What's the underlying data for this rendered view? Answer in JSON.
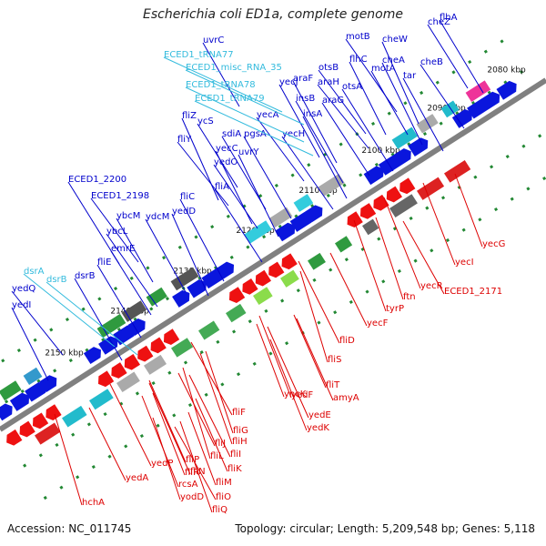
{
  "title": "Escherichia coli ED1a, complete genome",
  "footer": {
    "accession": "Accession: NC_011745",
    "summary": "Topology: circular; Length: 5,209,548 bp; Genes: 5,118"
  },
  "colors": {
    "backbone": "#808080",
    "forward_label": "#0000cc",
    "rna_label": "#33bbdd",
    "reverse_label": "#dd0000",
    "tick": "#228833"
  },
  "scale_ticks": [
    "2080 kbp",
    "2090 kbp",
    "2100 kbp",
    "2110 kbp",
    "2120 kbp",
    "2130 kbp",
    "2140 kbp",
    "2150 kbp"
  ],
  "forward_genes": [
    "uvrC",
    "yecJ",
    "araF",
    "otsB",
    "motB",
    "cheW",
    "cheZ",
    "flhA",
    "insB",
    "araH",
    "flhC",
    "cheA",
    "cheB",
    "araG",
    "otsA",
    "motA",
    "tar",
    "insA",
    "yecA",
    "yecH",
    "fliZ",
    "ycS",
    "sdiA",
    "pgsA",
    "fliY",
    "yecC",
    "uvrY",
    "yedO",
    "fliA",
    "ECED1_2200",
    "ybcM",
    "ydcM",
    "fliC",
    "ECED1_2198",
    "ybcL",
    "yedD",
    "emrE",
    "fliE",
    "dsrB",
    "yedQ",
    "yedI"
  ],
  "rna_genes": [
    "ECED1_tRNA77",
    "ECED1_misc_RNA_35",
    "ECED1_tRNA78",
    "ECED1_tRNA79",
    "dsrA",
    "dsrB"
  ],
  "reverse_genes": [
    "yecG",
    "yecI",
    "yecR",
    "ECED1_2171",
    "ftn",
    "tyrP",
    "yecF",
    "fliD",
    "fliS",
    "fliT",
    "amyA",
    "yedE",
    "yncK",
    "yedF",
    "yedK",
    "fliF",
    "fliG",
    "fliH",
    "fliJ",
    "fliI",
    "fliL",
    "fliK",
    "fliP",
    "fliN",
    "fliM",
    "fliR",
    "rcsA",
    "fliO",
    "yodD",
    "fliQ",
    "yedA",
    "yedP",
    "hchA"
  ]
}
